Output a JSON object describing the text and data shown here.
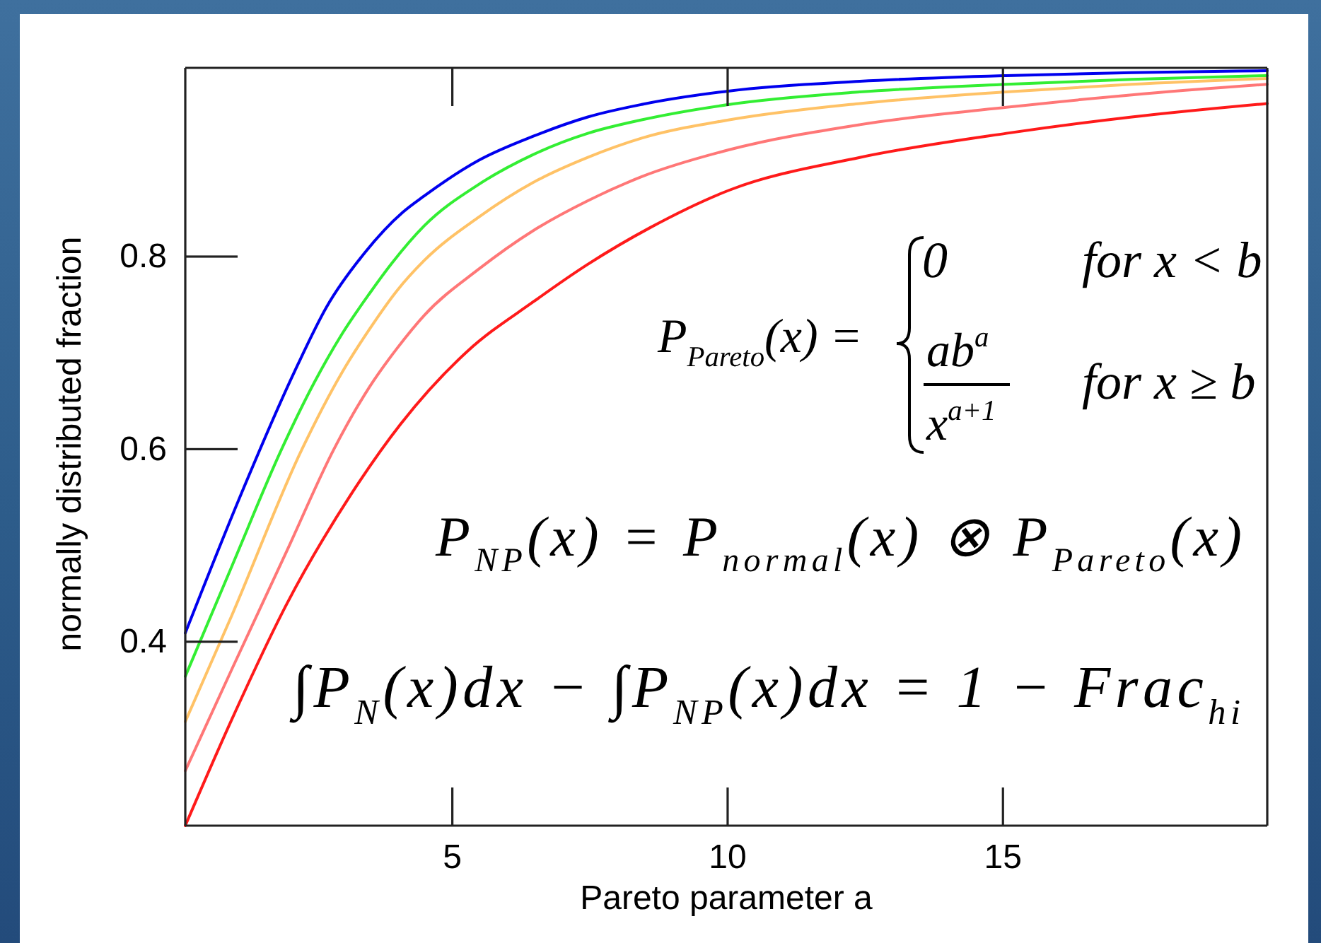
{
  "chart_data": {
    "type": "line",
    "xlabel": "Pareto parameter a",
    "ylabel": "normally distributed fraction",
    "xlim": [
      0.15,
      19.8
    ],
    "ylim": [
      0.209,
      0.996
    ],
    "xticks": [
      5,
      10,
      15
    ],
    "yticks": [
      0.4,
      0.6,
      0.8
    ],
    "series": [
      {
        "color": "#0000ee",
        "x": [
          0.15,
          1.14,
          2.13,
          2.72,
          3.41,
          4.1,
          4.49,
          5.48,
          6.47,
          7.46,
          8.44,
          10.03,
          12.4,
          15.06,
          17.34,
          19.8
        ],
        "values": [
          0.409,
          0.55,
          0.68,
          0.748,
          0.804,
          0.846,
          0.863,
          0.9,
          0.925,
          0.945,
          0.958,
          0.972,
          0.982,
          0.988,
          0.991,
          0.993
        ]
      },
      {
        "color": "#33ee33",
        "x": [
          0.15,
          1,
          1.9,
          2.5,
          3,
          3.5,
          3.9,
          4.49,
          5.48,
          6.47,
          7.46,
          8.44,
          10.03,
          12.4,
          15.06,
          17.34,
          19.8
        ],
        "values": [
          0.364,
          0.479,
          0.6,
          0.67,
          0.72,
          0.762,
          0.793,
          0.832,
          0.875,
          0.906,
          0.928,
          0.942,
          0.958,
          0.971,
          0.979,
          0.984,
          0.988
        ]
      },
      {
        "color": "#ffc266",
        "x": [
          0.15,
          1,
          2.27,
          3,
          3.5,
          4,
          4.49,
          5.48,
          6.47,
          7.46,
          8.44,
          10.03,
          12.4,
          15.06,
          17.34,
          19.8
        ],
        "values": [
          0.317,
          0.428,
          0.6,
          0.68,
          0.725,
          0.765,
          0.796,
          0.841,
          0.877,
          0.903,
          0.923,
          0.942,
          0.959,
          0.971,
          0.979,
          0.985
        ]
      },
      {
        "color": "#ff7777",
        "x": [
          0.15,
          1,
          2,
          2.85,
          3.5,
          4,
          4.49,
          5.48,
          6.47,
          7.46,
          8.44,
          10.03,
          12.4,
          15.06,
          17.34,
          19.8
        ],
        "values": [
          0.266,
          0.372,
          0.495,
          0.6,
          0.665,
          0.705,
          0.739,
          0.787,
          0.827,
          0.858,
          0.883,
          0.911,
          0.937,
          0.955,
          0.968,
          0.979
        ]
      },
      {
        "color": "#ff1a1a",
        "x": [
          0.15,
          1,
          2,
          3.16,
          4.06,
          5.28,
          6.47,
          7.46,
          8.59,
          10.03,
          12.4,
          15.06,
          17.34,
          19.8
        ],
        "values": [
          0.209,
          0.32,
          0.44,
          0.553,
          0.626,
          0.702,
          0.753,
          0.792,
          0.83,
          0.869,
          0.903,
          0.928,
          0.945,
          0.959
        ]
      }
    ],
    "annotations": [
      "P$_{Pareto}$(x) =",
      "0",
      "for x < b",
      "ab$^{a}$",
      "x$^{a+1}$",
      "for x ≥ b",
      "P$_{NP}$(x) = P$_{normal}$(x) ⊗ P$_{Pareto}$(x)",
      "∫P$_{N}$(x)dx − ∫P$_{NP}$(x)dx = 1 − Frac$_{hi}$"
    ]
  }
}
